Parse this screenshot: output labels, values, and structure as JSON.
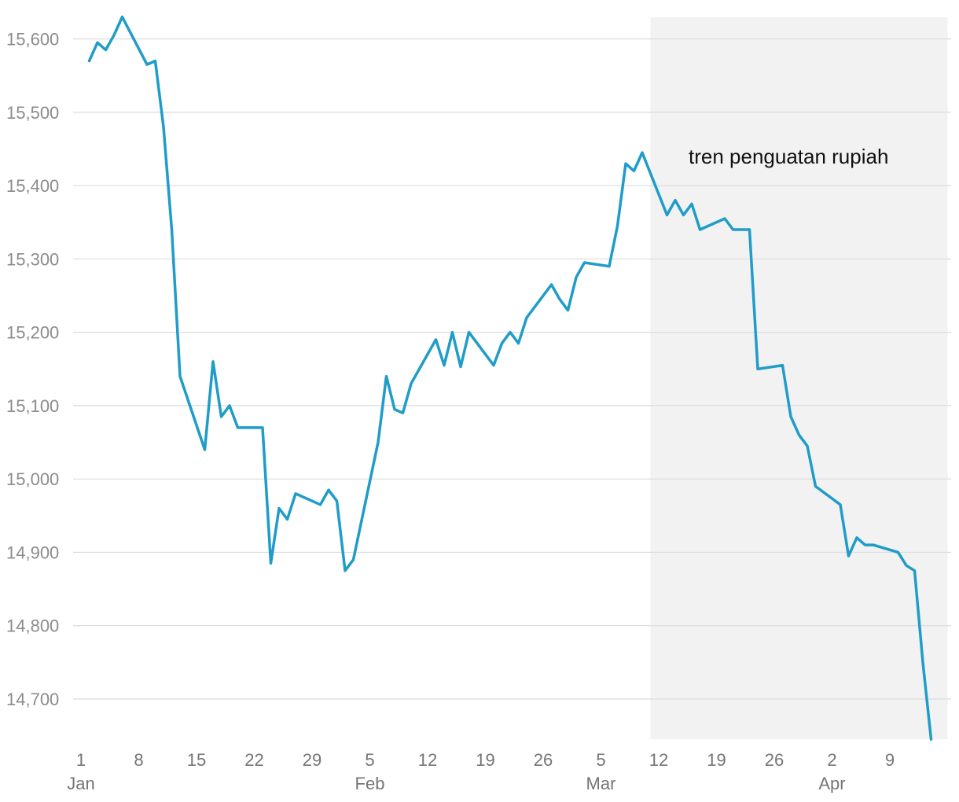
{
  "chart_data": {
    "type": "line",
    "title": "",
    "xlabel": "",
    "ylabel": "",
    "ylim": [
      14645,
      15630
    ],
    "grid": true,
    "legend": "none",
    "y_ticks": [
      {
        "value": 15600,
        "label": "15,600"
      },
      {
        "value": 15500,
        "label": "15,500"
      },
      {
        "value": 15400,
        "label": "15,400"
      },
      {
        "value": 15300,
        "label": "15,300"
      },
      {
        "value": 15200,
        "label": "15,200"
      },
      {
        "value": 15100,
        "label": "15,100"
      },
      {
        "value": 15000,
        "label": "15,000"
      },
      {
        "value": 14900,
        "label": "14,900"
      },
      {
        "value": 14800,
        "label": "14,800"
      },
      {
        "value": 14700,
        "label": "14,700"
      }
    ],
    "x_ticks": [
      {
        "date": "2019-01-01",
        "label": "1",
        "month": "Jan"
      },
      {
        "date": "2019-01-08",
        "label": "8",
        "month": ""
      },
      {
        "date": "2019-01-15",
        "label": "15",
        "month": ""
      },
      {
        "date": "2019-01-22",
        "label": "22",
        "month": ""
      },
      {
        "date": "2019-01-29",
        "label": "29",
        "month": ""
      },
      {
        "date": "2019-02-05",
        "label": "5",
        "month": "Feb"
      },
      {
        "date": "2019-02-12",
        "label": "12",
        "month": ""
      },
      {
        "date": "2019-02-19",
        "label": "19",
        "month": ""
      },
      {
        "date": "2019-02-26",
        "label": "26",
        "month": ""
      },
      {
        "date": "2019-03-05",
        "label": "5",
        "month": "Mar"
      },
      {
        "date": "2019-03-12",
        "label": "12",
        "month": ""
      },
      {
        "date": "2019-03-19",
        "label": "19",
        "month": ""
      },
      {
        "date": "2019-03-26",
        "label": "26",
        "month": ""
      },
      {
        "date": "2019-04-02",
        "label": "2",
        "month": "Apr"
      },
      {
        "date": "2019-04-09",
        "label": "9",
        "month": ""
      }
    ],
    "x_range": [
      "2019-01-01",
      "2019-04-16"
    ],
    "shaded_region": {
      "x_start": "2019-03-11",
      "x_end": "2019-04-16",
      "label": "tren penguatan rupiah",
      "color": "#f2f2f2"
    },
    "series": [
      {
        "color": "#1f9cc8",
        "points": [
          [
            "2019-01-02",
            15570
          ],
          [
            "2019-01-03",
            15595
          ],
          [
            "2019-01-04",
            15585
          ],
          [
            "2019-01-05",
            15605
          ],
          [
            "2019-01-06",
            15630
          ],
          [
            "2019-01-09",
            15565
          ],
          [
            "2019-01-10",
            15570
          ],
          [
            "2019-01-11",
            15480
          ],
          [
            "2019-01-12",
            15340
          ],
          [
            "2019-01-13",
            15140
          ],
          [
            "2019-01-16",
            15040
          ],
          [
            "2019-01-17",
            15160
          ],
          [
            "2019-01-18",
            15085
          ],
          [
            "2019-01-19",
            15100
          ],
          [
            "2019-01-20",
            15070
          ],
          [
            "2019-01-23",
            15070
          ],
          [
            "2019-01-24",
            14885
          ],
          [
            "2019-01-25",
            14960
          ],
          [
            "2019-01-26",
            14945
          ],
          [
            "2019-01-27",
            14980
          ],
          [
            "2019-01-30",
            14965
          ],
          [
            "2019-01-31",
            14985
          ],
          [
            "2019-02-01",
            14970
          ],
          [
            "2019-02-02",
            14875
          ],
          [
            "2019-02-03",
            14890
          ],
          [
            "2019-02-06",
            15050
          ],
          [
            "2019-02-07",
            15140
          ],
          [
            "2019-02-08",
            15095
          ],
          [
            "2019-02-09",
            15090
          ],
          [
            "2019-02-10",
            15130
          ],
          [
            "2019-02-13",
            15190
          ],
          [
            "2019-02-14",
            15155
          ],
          [
            "2019-02-15",
            15200
          ],
          [
            "2019-02-16",
            15153
          ],
          [
            "2019-02-17",
            15200
          ],
          [
            "2019-02-20",
            15155
          ],
          [
            "2019-02-21",
            15185
          ],
          [
            "2019-02-22",
            15200
          ],
          [
            "2019-02-23",
            15185
          ],
          [
            "2019-02-24",
            15220
          ],
          [
            "2019-02-27",
            15265
          ],
          [
            "2019-02-28",
            15245
          ],
          [
            "2019-03-01",
            15230
          ],
          [
            "2019-03-02",
            15275
          ],
          [
            "2019-03-03",
            15295
          ],
          [
            "2019-03-06",
            15290
          ],
          [
            "2019-03-07",
            15345
          ],
          [
            "2019-03-08",
            15430
          ],
          [
            "2019-03-09",
            15420
          ],
          [
            "2019-03-10",
            15445
          ],
          [
            "2019-03-13",
            15360
          ],
          [
            "2019-03-14",
            15380
          ],
          [
            "2019-03-15",
            15360
          ],
          [
            "2019-03-16",
            15375
          ],
          [
            "2019-03-17",
            15340
          ],
          [
            "2019-03-20",
            15355
          ],
          [
            "2019-03-21",
            15340
          ],
          [
            "2019-03-23",
            15340
          ],
          [
            "2019-03-24",
            15150
          ],
          [
            "2019-03-27",
            15155
          ],
          [
            "2019-03-28",
            15085
          ],
          [
            "2019-03-29",
            15060
          ],
          [
            "2019-03-30",
            15045
          ],
          [
            "2019-03-31",
            14990
          ],
          [
            "2019-04-03",
            14965
          ],
          [
            "2019-04-04",
            14895
          ],
          [
            "2019-04-05",
            14920
          ],
          [
            "2019-04-06",
            14910
          ],
          [
            "2019-04-07",
            14910
          ],
          [
            "2019-04-10",
            14900
          ],
          [
            "2019-04-11",
            14882
          ],
          [
            "2019-04-12",
            14875
          ],
          [
            "2019-04-13",
            14750
          ],
          [
            "2019-04-14",
            14645
          ]
        ]
      }
    ]
  }
}
